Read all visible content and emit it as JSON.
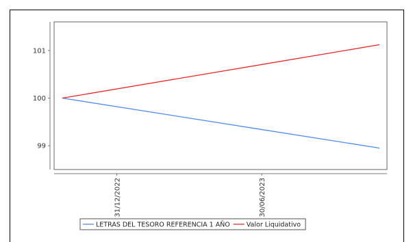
{
  "chart_data": {
    "type": "line",
    "title": "",
    "xlabel": "",
    "ylabel": "",
    "x_tick_labels": [
      "31/12/2022",
      "30/06/2023"
    ],
    "y_ticks": [
      99,
      100,
      101
    ],
    "ylim": [
      98.5,
      101.6
    ],
    "x_dates": [
      "2022-10-24",
      "2023-11-24"
    ],
    "series": [
      {
        "name": "LETRAS DEL TESORO      REFERENCIA 1 AÑO",
        "color": "#4a8cf0",
        "x": [
          "2022-10-24",
          "2023-11-24"
        ],
        "values": [
          100.0,
          98.95
        ]
      },
      {
        "name": "Valor Liquidativo",
        "color": "#ee2222",
        "x": [
          "2022-10-24",
          "2023-11-24"
        ],
        "values": [
          100.0,
          101.12
        ]
      }
    ],
    "legend_position": "bottom",
    "grid": false
  }
}
